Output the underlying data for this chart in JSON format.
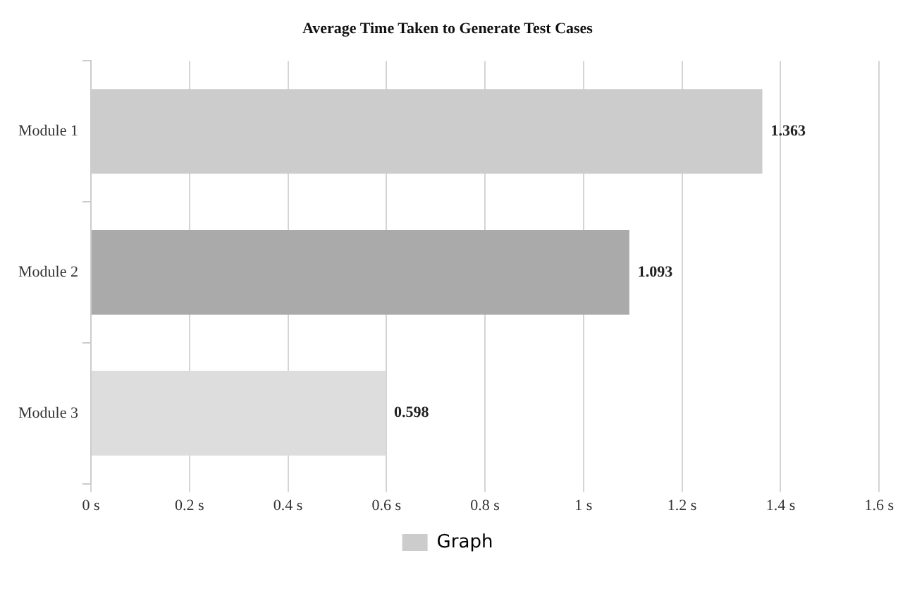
{
  "chart_data": {
    "type": "bar",
    "orientation": "horizontal",
    "title": "Average Time Taken to Generate Test Cases",
    "categories": [
      "Module 1",
      "Module 2",
      "Module 3"
    ],
    "series": [
      {
        "name": "Graph",
        "color": "#cccccc",
        "colors": [
          "#cccccc",
          "#aaaaaa",
          "#dddddd"
        ],
        "values": [
          1.363,
          1.093,
          0.598
        ]
      }
    ],
    "xlim": [
      0,
      1.6
    ],
    "xticks": [
      {
        "value": 0,
        "label": "0 s"
      },
      {
        "value": 0.2,
        "label": "0.2 s"
      },
      {
        "value": 0.4,
        "label": "0.4 s"
      },
      {
        "value": 0.6,
        "label": "0.6 s"
      },
      {
        "value": 0.8,
        "label": "0.8 s"
      },
      {
        "value": 1,
        "label": "1 s"
      },
      {
        "value": 1.2,
        "label": "1.2 s"
      },
      {
        "value": 1.4,
        "label": "1.4 s"
      },
      {
        "value": 1.6,
        "label": "1.6 s"
      }
    ],
    "grid": "x",
    "legend": "bottom",
    "data_labels": true
  }
}
